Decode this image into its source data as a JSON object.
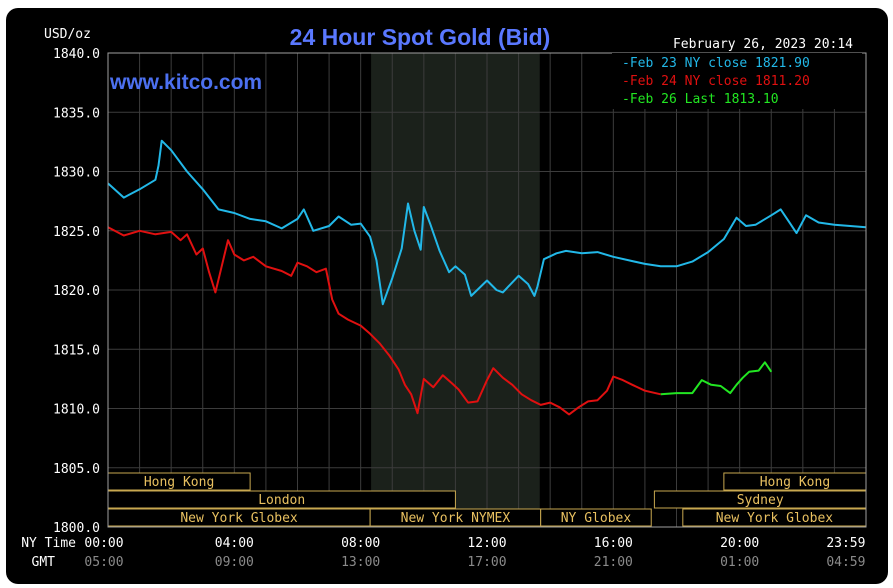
{
  "chart_data": {
    "type": "line",
    "title": "24 Hour Spot Gold (Bid)",
    "unit_label": "USD/oz",
    "watermark": "www.kitco.com",
    "timestamp": "February 26, 2023 20:14",
    "ylim": [
      1800,
      1840
    ],
    "y_ticks": [
      "1840.0",
      "1835.0",
      "1830.0",
      "1825.0",
      "1820.0",
      "1815.0",
      "1810.0",
      "1805.0",
      "1800.0"
    ],
    "xlim": [
      0,
      24
    ],
    "x_row_label_ny": "NY Time",
    "x_row_label_gmt": "GMT",
    "x_ticks_ny": [
      "00:00",
      "04:00",
      "08:00",
      "12:00",
      "16:00",
      "20:00",
      "23:59"
    ],
    "x_ticks_gmt": [
      "05:00",
      "09:00",
      "13:00",
      "17:00",
      "21:00",
      "01:00",
      "04:59"
    ],
    "shaded_interval": [
      8.33,
      13.67
    ],
    "grid": true,
    "legend_position": "top-right",
    "series": [
      {
        "name": "Feb 23 NY close 1821.90",
        "color": "#22b8e8",
        "points": [
          [
            0,
            1829
          ],
          [
            0.5,
            1827.8
          ],
          [
            1,
            1828.5
          ],
          [
            1.5,
            1829.3
          ],
          [
            1.6,
            1830.5
          ],
          [
            1.7,
            1832.6
          ],
          [
            2,
            1831.8
          ],
          [
            2.5,
            1830
          ],
          [
            3,
            1828.5
          ],
          [
            3.5,
            1826.8
          ],
          [
            4,
            1826.5
          ],
          [
            4.5,
            1826
          ],
          [
            5,
            1825.8
          ],
          [
            5.5,
            1825.2
          ],
          [
            6,
            1826
          ],
          [
            6.2,
            1826.8
          ],
          [
            6.5,
            1825
          ],
          [
            7,
            1825.4
          ],
          [
            7.3,
            1826.2
          ],
          [
            7.7,
            1825.5
          ],
          [
            8,
            1825.6
          ],
          [
            8.3,
            1824.5
          ],
          [
            8.5,
            1822.5
          ],
          [
            8.7,
            1818.8
          ],
          [
            9,
            1821
          ],
          [
            9.3,
            1823.5
          ],
          [
            9.5,
            1827.3
          ],
          [
            9.7,
            1825
          ],
          [
            9.9,
            1823.4
          ],
          [
            10,
            1827
          ],
          [
            10.2,
            1825.6
          ],
          [
            10.5,
            1823.3
          ],
          [
            10.8,
            1821.5
          ],
          [
            11,
            1822
          ],
          [
            11.3,
            1821.3
          ],
          [
            11.5,
            1819.5
          ],
          [
            12,
            1820.8
          ],
          [
            12.3,
            1820
          ],
          [
            12.5,
            1819.8
          ],
          [
            13,
            1821.2
          ],
          [
            13.3,
            1820.5
          ],
          [
            13.5,
            1819.5
          ],
          [
            13.6,
            1820.3
          ],
          [
            13.8,
            1822.6
          ],
          [
            14.2,
            1823.1
          ],
          [
            14.5,
            1823.3
          ],
          [
            15,
            1823.1
          ],
          [
            15.5,
            1823.2
          ],
          [
            16,
            1822.8
          ],
          [
            16.5,
            1822.5
          ],
          [
            17,
            1822.2
          ],
          [
            17.5,
            1822
          ],
          [
            18,
            1822
          ],
          [
            18.5,
            1822.4
          ],
          [
            19,
            1823.2
          ],
          [
            19.5,
            1824.3
          ],
          [
            19.9,
            1826.1
          ],
          [
            20.2,
            1825.4
          ],
          [
            20.5,
            1825.5
          ],
          [
            21,
            1826.3
          ],
          [
            21.3,
            1826.8
          ],
          [
            21.6,
            1825.6
          ],
          [
            21.8,
            1824.8
          ],
          [
            22.1,
            1826.3
          ],
          [
            22.5,
            1825.7
          ],
          [
            23,
            1825.5
          ],
          [
            23.5,
            1825.4
          ],
          [
            24,
            1825.3
          ]
        ]
      },
      {
        "name": "Feb 24 NY close 1811.20",
        "color": "#e01010",
        "points": [
          [
            0,
            1825.3
          ],
          [
            0.5,
            1824.6
          ],
          [
            1,
            1825
          ],
          [
            1.5,
            1824.7
          ],
          [
            2,
            1824.9
          ],
          [
            2.3,
            1824.2
          ],
          [
            2.5,
            1824.7
          ],
          [
            2.8,
            1823
          ],
          [
            3,
            1823.5
          ],
          [
            3.2,
            1821.5
          ],
          [
            3.4,
            1819.8
          ],
          [
            3.6,
            1822
          ],
          [
            3.8,
            1824.2
          ],
          [
            4,
            1823
          ],
          [
            4.3,
            1822.5
          ],
          [
            4.6,
            1822.8
          ],
          [
            5,
            1822
          ],
          [
            5.5,
            1821.6
          ],
          [
            5.8,
            1821.2
          ],
          [
            6,
            1822.3
          ],
          [
            6.3,
            1822
          ],
          [
            6.6,
            1821.5
          ],
          [
            6.9,
            1821.8
          ],
          [
            7.1,
            1819.2
          ],
          [
            7.3,
            1818
          ],
          [
            7.6,
            1817.5
          ],
          [
            8,
            1817
          ],
          [
            8.3,
            1816.3
          ],
          [
            8.6,
            1815.5
          ],
          [
            8.9,
            1814.5
          ],
          [
            9.2,
            1813.3
          ],
          [
            9.4,
            1812
          ],
          [
            9.6,
            1811.2
          ],
          [
            9.8,
            1809.6
          ],
          [
            10,
            1812.5
          ],
          [
            10.3,
            1811.8
          ],
          [
            10.6,
            1812.8
          ],
          [
            10.9,
            1812.1
          ],
          [
            11.1,
            1811.6
          ],
          [
            11.4,
            1810.5
          ],
          [
            11.7,
            1810.6
          ],
          [
            12,
            1812.4
          ],
          [
            12.2,
            1813.4
          ],
          [
            12.5,
            1812.6
          ],
          [
            12.8,
            1812
          ],
          [
            13.1,
            1811.2
          ],
          [
            13.4,
            1810.7
          ],
          [
            13.7,
            1810.3
          ],
          [
            14,
            1810.5
          ],
          [
            14.3,
            1810.1
          ],
          [
            14.6,
            1809.5
          ],
          [
            14.9,
            1810.1
          ],
          [
            15.2,
            1810.6
          ],
          [
            15.5,
            1810.7
          ],
          [
            15.8,
            1811.5
          ],
          [
            16,
            1812.7
          ],
          [
            16.3,
            1812.4
          ],
          [
            16.6,
            1812
          ],
          [
            17,
            1811.5
          ],
          [
            17.5,
            1811.2
          ]
        ]
      },
      {
        "name": "Feb 26 Last 1813.10",
        "color": "#22e622",
        "points": [
          [
            17.5,
            1811.2
          ],
          [
            18,
            1811.3
          ],
          [
            18.5,
            1811.3
          ],
          [
            18.8,
            1812.4
          ],
          [
            19.1,
            1812
          ],
          [
            19.4,
            1811.9
          ],
          [
            19.7,
            1811.3
          ],
          [
            19.9,
            1812
          ],
          [
            20.1,
            1812.6
          ],
          [
            20.3,
            1813.1
          ],
          [
            20.6,
            1813.2
          ],
          [
            20.8,
            1813.9
          ],
          [
            21,
            1813.1
          ]
        ]
      }
    ],
    "market_sessions": [
      {
        "name": "Hong Kong",
        "row": 0,
        "start": -1.5,
        "end": 4.5
      },
      {
        "name": "Hong Kong",
        "row": 0,
        "start": 19.5,
        "end": 25
      },
      {
        "name": "London",
        "row": 1,
        "start": -1,
        "end": 11
      },
      {
        "name": "Sydney",
        "row": 1,
        "start": 17.3,
        "end": 25
      },
      {
        "name": "New York Globex",
        "row": 2,
        "start": -1.5,
        "end": 8.3
      },
      {
        "name": "New York NYMEX",
        "row": 2,
        "start": 8.3,
        "end": 13.7
      },
      {
        "name": "NY Globex",
        "row": 2,
        "start": 13.7,
        "end": 17.2
      },
      {
        "name": "New York Globex",
        "row": 2,
        "start": 18.2,
        "end": 25
      }
    ]
  }
}
